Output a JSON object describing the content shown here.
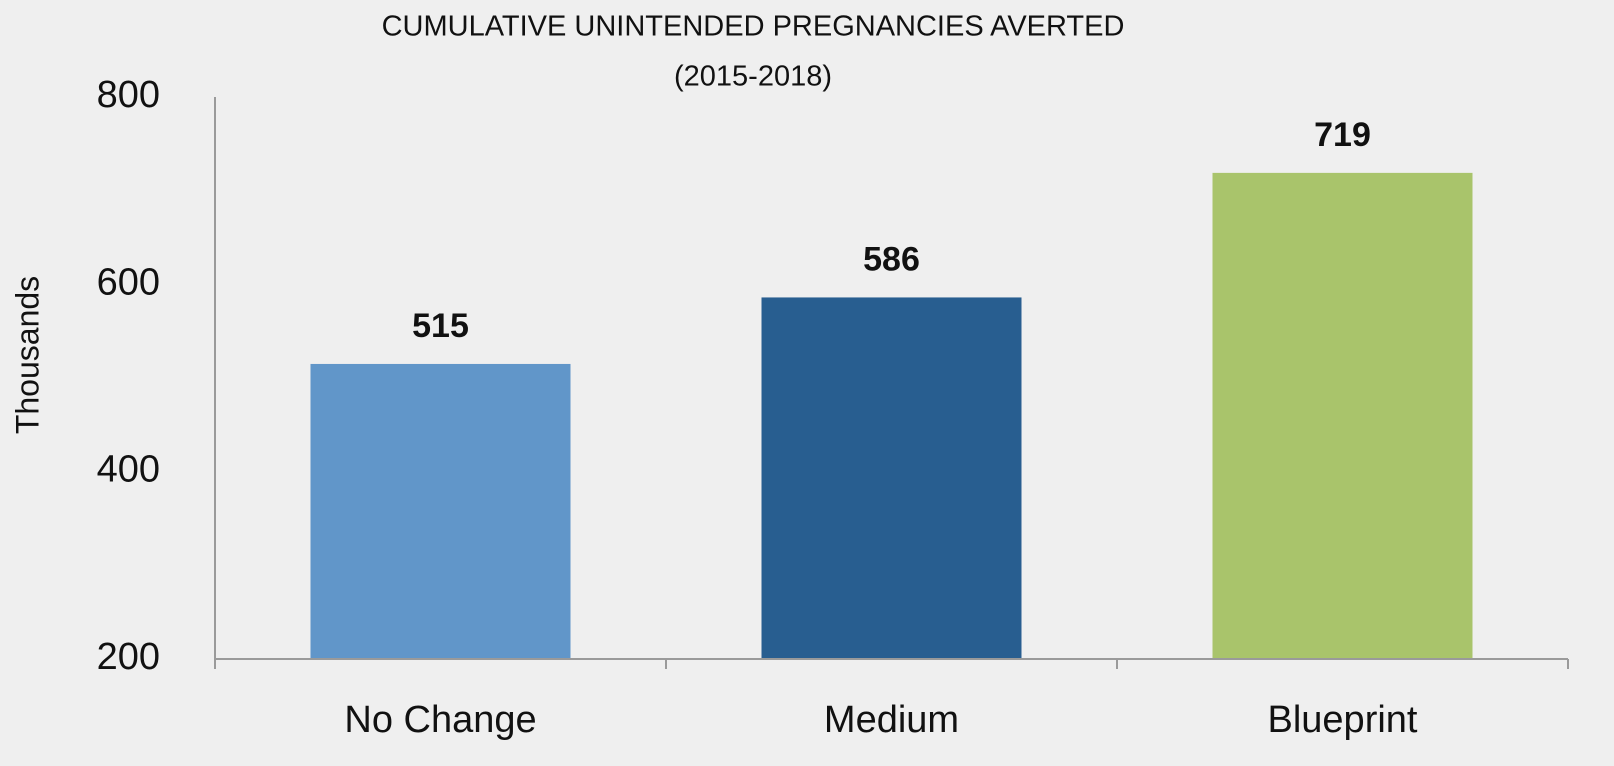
{
  "chart_data": {
    "type": "bar",
    "title": "CUMULATIVE UNINTENDED PREGNANCIES AVERTED",
    "subtitle": "(2015-2018)",
    "y_label": "Thousands",
    "categories": [
      "No Change",
      "Medium",
      "Blueprint"
    ],
    "values": [
      515,
      586,
      719
    ],
    "colors": [
      "#6196c9",
      "#285e90",
      "#a9c46b"
    ],
    "ylim": [
      200,
      800
    ],
    "yticks": [
      200,
      400,
      600,
      800
    ],
    "grid": false
  }
}
